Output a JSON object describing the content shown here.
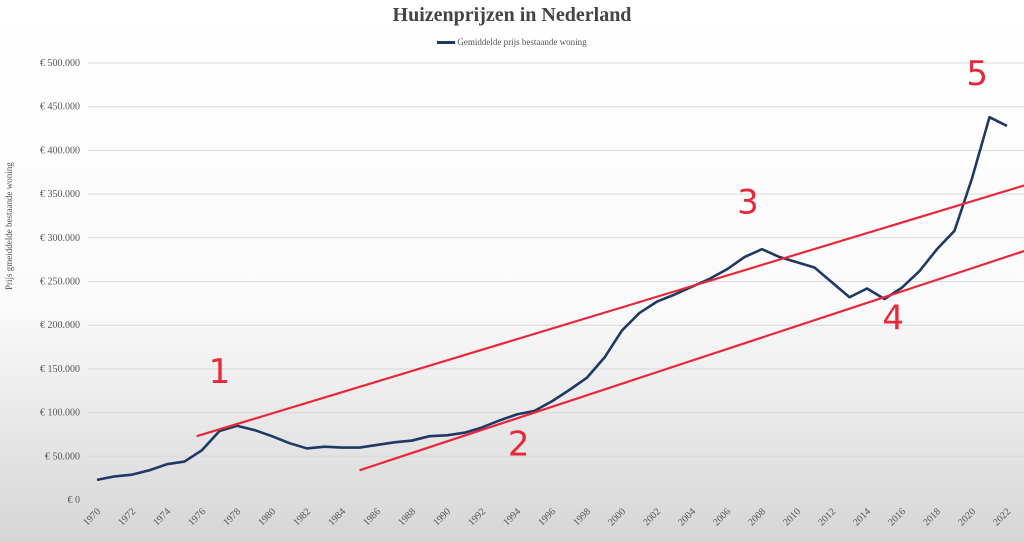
{
  "chart_data": {
    "type": "line",
    "title": "Huizenprijzen in Nederland",
    "xlabel": "",
    "ylabel": "Prijs gmeiddelde bestaande woning",
    "legend": {
      "position": "top-center",
      "entries": [
        "Gemiddelde prijs bestaande woning"
      ]
    },
    "ylim": [
      0,
      500000
    ],
    "yticks": [
      "€ 0",
      "€ 50.000",
      "€ 100.000",
      "€ 150.000",
      "€ 200.000",
      "€ 250.000",
      "€ 300.000",
      "€ 350.000",
      "€ 400.000",
      "€ 450.000",
      "€ 500.000"
    ],
    "xticks": [
      "1970",
      "1972",
      "1974",
      "1976",
      "1978",
      "1980",
      "1982",
      "1984",
      "1986",
      "1988",
      "1990",
      "1992",
      "1994",
      "1996",
      "1998",
      "2000",
      "2002",
      "2004",
      "2006",
      "2008",
      "2010",
      "2012",
      "2014",
      "2016",
      "2018",
      "2020",
      "2022"
    ],
    "grid": true,
    "series": [
      {
        "name": "Gemiddelde prijs bestaande woning",
        "color": "#1f3864",
        "x": [
          1970,
          1971,
          1972,
          1973,
          1974,
          1975,
          1976,
          1977,
          1978,
          1979,
          1980,
          1981,
          1982,
          1983,
          1984,
          1985,
          1986,
          1987,
          1988,
          1989,
          1990,
          1991,
          1992,
          1993,
          1994,
          1995,
          1996,
          1997,
          1998,
          1999,
          2000,
          2001,
          2002,
          2003,
          2004,
          2005,
          2006,
          2007,
          2008,
          2009,
          2010,
          2011,
          2012,
          2013,
          2014,
          2015,
          2016,
          2017,
          2018,
          2019,
          2020,
          2021,
          2022
        ],
        "values": [
          23000,
          27000,
          29000,
          34000,
          41000,
          44000,
          57000,
          79000,
          85000,
          80000,
          73000,
          65000,
          59000,
          61000,
          60000,
          60000,
          63000,
          66000,
          68000,
          73000,
          74000,
          77000,
          83000,
          91000,
          98000,
          102000,
          113000,
          126000,
          140000,
          163000,
          194000,
          214000,
          227000,
          235000,
          244000,
          253000,
          264000,
          278000,
          287000,
          278000,
          272000,
          266000,
          249000,
          232000,
          242000,
          230000,
          243000,
          262000,
          287000,
          308000,
          368000,
          438000,
          428000
        ]
      }
    ],
    "annotations": {
      "color": "#e8283a",
      "trendlines": [
        {
          "from": [
            1975.7,
            73000
          ],
          "to": [
            2023.0,
            360000
          ]
        },
        {
          "from": [
            1985.0,
            34000
          ],
          "to": [
            2023.0,
            285000
          ]
        }
      ],
      "labels": [
        {
          "text": "1",
          "at": [
            1977.0,
            134000
          ]
        },
        {
          "text": "2",
          "at": [
            1994.1,
            51000
          ]
        },
        {
          "text": "3",
          "at": [
            2007.2,
            328000
          ]
        },
        {
          "text": "4",
          "at": [
            2015.5,
            195000
          ]
        },
        {
          "text": "5",
          "at": [
            2020.3,
            475000
          ]
        }
      ]
    }
  }
}
